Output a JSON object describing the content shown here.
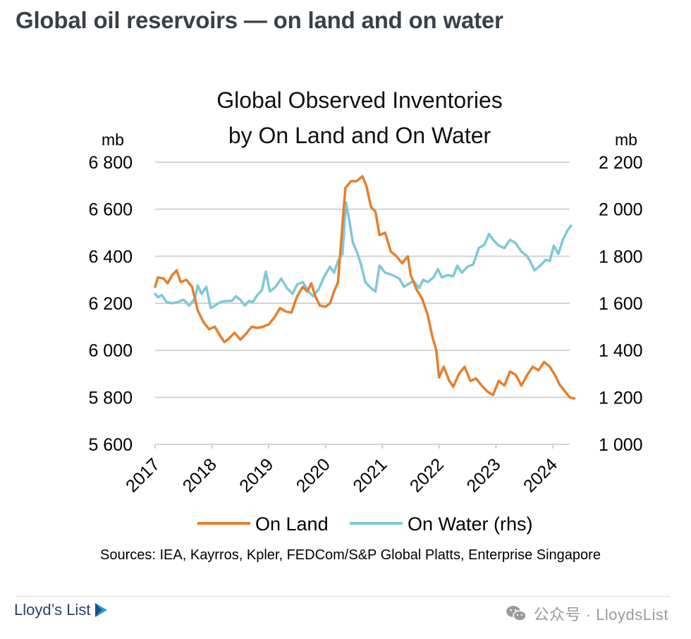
{
  "page": {
    "headline": "Global oil reservoirs — on land and on water",
    "brand": "Lloyd’s List",
    "wechat_label": "公众号 · LloydsList"
  },
  "chart_data": {
    "type": "line",
    "title": "Global Observed Inventories by On Land and On Water",
    "title_lines": [
      "Global Observed Inventories",
      "by On Land and On Water"
    ],
    "left_unit": "mb",
    "right_unit": "mb",
    "y_left": {
      "ylim": [
        5600,
        6800
      ],
      "ticks": [
        6800,
        6600,
        6400,
        6200,
        6000,
        5800,
        5600
      ],
      "tick_labels": [
        "6 800",
        "6 600",
        "6 400",
        "6 200",
        "6 000",
        "5 800",
        "5 600"
      ]
    },
    "y_right": {
      "ylim": [
        1000,
        2200
      ],
      "ticks": [
        2200,
        2000,
        1800,
        1600,
        1400,
        1200,
        1000
      ],
      "tick_labels": [
        "2 200",
        "2 000",
        "1 800",
        "1 600",
        "1 400",
        "1 200",
        "1 000"
      ]
    },
    "x": {
      "xlim": [
        2017,
        2024.3
      ],
      "ticks": [
        2017,
        2018,
        2019,
        2020,
        2021,
        2022,
        2023,
        2024
      ],
      "tick_labels": [
        "2017",
        "2018",
        "2019",
        "2020",
        "2021",
        "2022",
        "2023",
        "2024"
      ]
    },
    "grid": true,
    "legend_position": "bottom",
    "source": "Sources: IEA, Kayrros, Kpler, FEDCom/S&P Global Platts, Enterprise Singapore",
    "series": [
      {
        "name": "On Land",
        "axis": "left",
        "color": "#e57f2e",
        "points": [
          [
            2017.0,
            6270
          ],
          [
            2017.05,
            6310
          ],
          [
            2017.15,
            6305
          ],
          [
            2017.22,
            6285
          ],
          [
            2017.3,
            6320
          ],
          [
            2017.38,
            6340
          ],
          [
            2017.45,
            6290
          ],
          [
            2017.55,
            6300
          ],
          [
            2017.65,
            6270
          ],
          [
            2017.75,
            6170
          ],
          [
            2017.85,
            6120
          ],
          [
            2017.95,
            6090
          ],
          [
            2018.05,
            6100
          ],
          [
            2018.15,
            6060
          ],
          [
            2018.22,
            6035
          ],
          [
            2018.3,
            6050
          ],
          [
            2018.4,
            6075
          ],
          [
            2018.5,
            6045
          ],
          [
            2018.6,
            6070
          ],
          [
            2018.7,
            6100
          ],
          [
            2018.8,
            6095
          ],
          [
            2018.9,
            6100
          ],
          [
            2019.0,
            6110
          ],
          [
            2019.1,
            6140
          ],
          [
            2019.2,
            6180
          ],
          [
            2019.3,
            6165
          ],
          [
            2019.4,
            6160
          ],
          [
            2019.5,
            6230
          ],
          [
            2019.6,
            6270
          ],
          [
            2019.68,
            6250
          ],
          [
            2019.75,
            6285
          ],
          [
            2019.82,
            6230
          ],
          [
            2019.9,
            6190
          ],
          [
            2020.0,
            6185
          ],
          [
            2020.08,
            6200
          ],
          [
            2020.15,
            6250
          ],
          [
            2020.22,
            6290
          ],
          [
            2020.28,
            6480
          ],
          [
            2020.35,
            6690
          ],
          [
            2020.45,
            6720
          ],
          [
            2020.55,
            6720
          ],
          [
            2020.65,
            6740
          ],
          [
            2020.72,
            6700
          ],
          [
            2020.8,
            6610
          ],
          [
            2020.88,
            6590
          ],
          [
            2020.95,
            6490
          ],
          [
            2021.05,
            6500
          ],
          [
            2021.15,
            6420
          ],
          [
            2021.25,
            6400
          ],
          [
            2021.35,
            6370
          ],
          [
            2021.45,
            6400
          ],
          [
            2021.5,
            6320
          ],
          [
            2021.6,
            6260
          ],
          [
            2021.7,
            6220
          ],
          [
            2021.8,
            6150
          ],
          [
            2021.88,
            6060
          ],
          [
            2021.95,
            6000
          ],
          [
            2022.0,
            5885
          ],
          [
            2022.08,
            5930
          ],
          [
            2022.18,
            5870
          ],
          [
            2022.25,
            5845
          ],
          [
            2022.35,
            5900
          ],
          [
            2022.45,
            5930
          ],
          [
            2022.55,
            5870
          ],
          [
            2022.65,
            5880
          ],
          [
            2022.75,
            5850
          ],
          [
            2022.85,
            5825
          ],
          [
            2022.95,
            5810
          ],
          [
            2023.05,
            5870
          ],
          [
            2023.15,
            5850
          ],
          [
            2023.25,
            5910
          ],
          [
            2023.35,
            5895
          ],
          [
            2023.45,
            5850
          ],
          [
            2023.55,
            5895
          ],
          [
            2023.65,
            5930
          ],
          [
            2023.75,
            5915
          ],
          [
            2023.85,
            5950
          ],
          [
            2023.95,
            5930
          ],
          [
            2024.05,
            5890
          ],
          [
            2024.12,
            5855
          ],
          [
            2024.2,
            5830
          ],
          [
            2024.3,
            5800
          ],
          [
            2024.38,
            5795
          ]
        ]
      },
      {
        "name": "On Water (rhs)",
        "axis": "right",
        "color": "#7ec8d6",
        "points": [
          [
            2017.0,
            1640
          ],
          [
            2017.05,
            1625
          ],
          [
            2017.12,
            1635
          ],
          [
            2017.2,
            1605
          ],
          [
            2017.3,
            1600
          ],
          [
            2017.4,
            1605
          ],
          [
            2017.5,
            1615
          ],
          [
            2017.6,
            1590
          ],
          [
            2017.7,
            1620
          ],
          [
            2017.75,
            1675
          ],
          [
            2017.82,
            1640
          ],
          [
            2017.9,
            1670
          ],
          [
            2017.98,
            1580
          ],
          [
            2018.05,
            1590
          ],
          [
            2018.15,
            1605
          ],
          [
            2018.25,
            1610
          ],
          [
            2018.35,
            1610
          ],
          [
            2018.42,
            1630
          ],
          [
            2018.5,
            1615
          ],
          [
            2018.58,
            1590
          ],
          [
            2018.65,
            1610
          ],
          [
            2018.72,
            1605
          ],
          [
            2018.8,
            1635
          ],
          [
            2018.88,
            1655
          ],
          [
            2018.95,
            1735
          ],
          [
            2019.02,
            1650
          ],
          [
            2019.12,
            1670
          ],
          [
            2019.22,
            1705
          ],
          [
            2019.32,
            1665
          ],
          [
            2019.42,
            1640
          ],
          [
            2019.5,
            1680
          ],
          [
            2019.6,
            1690
          ],
          [
            2019.7,
            1650
          ],
          [
            2019.78,
            1630
          ],
          [
            2019.88,
            1660
          ],
          [
            2019.98,
            1715
          ],
          [
            2020.08,
            1755
          ],
          [
            2020.15,
            1730
          ],
          [
            2020.22,
            1780
          ],
          [
            2020.3,
            1810
          ],
          [
            2020.36,
            2030
          ],
          [
            2020.42,
            1950
          ],
          [
            2020.48,
            1860
          ],
          [
            2020.55,
            1820
          ],
          [
            2020.62,
            1770
          ],
          [
            2020.7,
            1690
          ],
          [
            2020.8,
            1665
          ],
          [
            2020.88,
            1650
          ],
          [
            2020.95,
            1760
          ],
          [
            2021.05,
            1730
          ],
          [
            2021.18,
            1720
          ],
          [
            2021.3,
            1705
          ],
          [
            2021.38,
            1670
          ],
          [
            2021.45,
            1680
          ],
          [
            2021.55,
            1695
          ],
          [
            2021.65,
            1665
          ],
          [
            2021.72,
            1700
          ],
          [
            2021.8,
            1690
          ],
          [
            2021.9,
            1710
          ],
          [
            2021.98,
            1745
          ],
          [
            2022.05,
            1710
          ],
          [
            2022.15,
            1720
          ],
          [
            2022.25,
            1715
          ],
          [
            2022.32,
            1760
          ],
          [
            2022.4,
            1730
          ],
          [
            2022.5,
            1755
          ],
          [
            2022.6,
            1765
          ],
          [
            2022.7,
            1835
          ],
          [
            2022.8,
            1850
          ],
          [
            2022.88,
            1895
          ],
          [
            2022.95,
            1870
          ],
          [
            2023.05,
            1845
          ],
          [
            2023.15,
            1835
          ],
          [
            2023.25,
            1870
          ],
          [
            2023.35,
            1855
          ],
          [
            2023.45,
            1820
          ],
          [
            2023.55,
            1800
          ],
          [
            2023.6,
            1780
          ],
          [
            2023.68,
            1740
          ],
          [
            2023.78,
            1760
          ],
          [
            2023.88,
            1785
          ],
          [
            2023.95,
            1780
          ],
          [
            2024.02,
            1845
          ],
          [
            2024.1,
            1810
          ],
          [
            2024.18,
            1870
          ],
          [
            2024.26,
            1910
          ],
          [
            2024.32,
            1930
          ]
        ]
      }
    ]
  }
}
